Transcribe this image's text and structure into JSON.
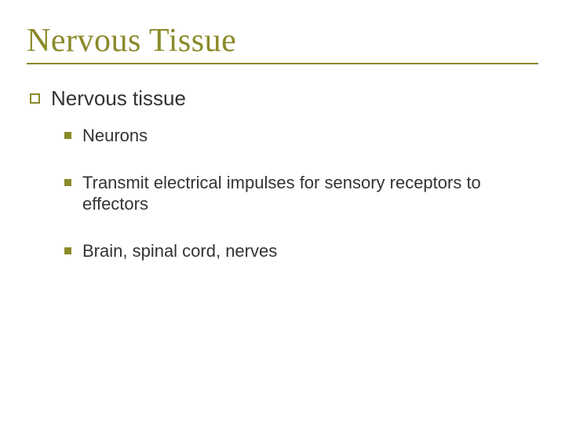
{
  "colors": {
    "accent": "#8a8a2a",
    "text": "#333333",
    "background": "#ffffff"
  },
  "typography": {
    "title_font": "Times New Roman",
    "body_font": "Verdana",
    "title_size_pt": 32,
    "level1_size_pt": 20,
    "level2_size_pt": 17
  },
  "slide": {
    "title": "Nervous Tissue",
    "level1": {
      "text": "Nervous tissue",
      "bullet_style": "open-square",
      "bullet_color": "#8a8a2a"
    },
    "level2": {
      "bullet_style": "solid-square",
      "bullet_color": "#8a8a2a",
      "items": [
        {
          "text": "Neurons"
        },
        {
          "text": "Transmit electrical impulses for sensory receptors to effectors"
        },
        {
          "text": "Brain, spinal cord, nerves"
        }
      ]
    }
  }
}
